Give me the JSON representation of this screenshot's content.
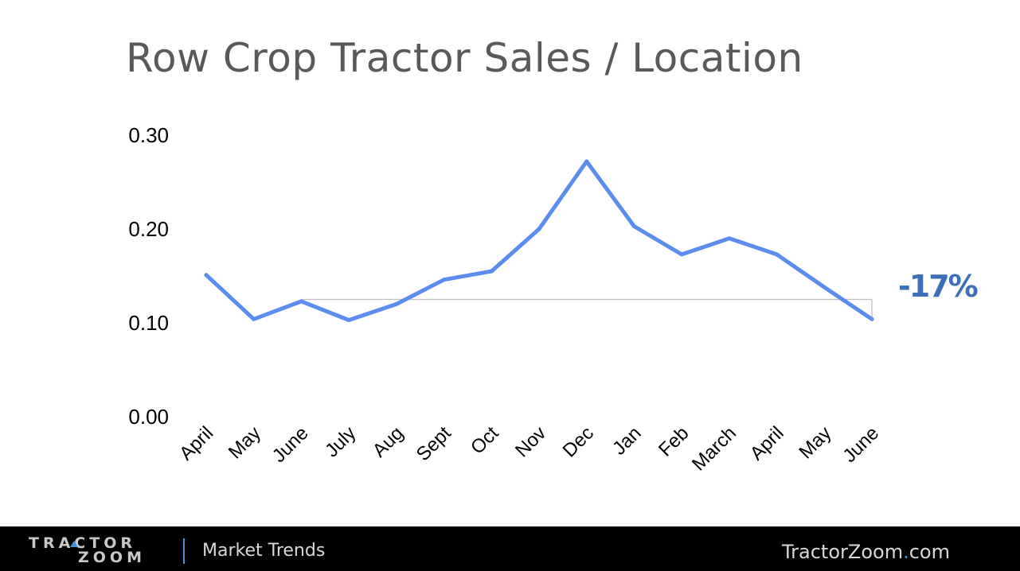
{
  "colors": {
    "line": "#5b8def",
    "accent": "#3d6fb8",
    "reference_line": "#bfbfbf",
    "footer_bg": "#000000"
  },
  "chart_data": {
    "type": "line",
    "title": "Row Crop Tractor Sales / Location",
    "categories": [
      "April",
      "May",
      "June",
      "July",
      "Aug",
      "Sept",
      "Oct",
      "Nov",
      "Dec",
      "Jan",
      "Feb",
      "March",
      "April",
      "May",
      "June"
    ],
    "series": [
      {
        "values": [
          0.151,
          0.104,
          0.123,
          0.103,
          0.12,
          0.146,
          0.155,
          0.2,
          0.272,
          0.203,
          0.173,
          0.19,
          0.173,
          0.138,
          0.104
        ]
      }
    ],
    "ylim": [
      0,
      0.3
    ],
    "yticks": [
      "0.30",
      "0.20",
      "0.10",
      "0.00"
    ],
    "ytick_values": [
      0.3,
      0.2,
      0.1,
      0.0
    ],
    "grid": false,
    "reference_value": 0.125,
    "annotation": "-17%"
  },
  "footer": {
    "logo_line1": "TRACTOR",
    "logo_line2": "ZOOM",
    "section": "Market Trends",
    "site_name": "TractorZoom",
    "site_dot": ".",
    "site_tld": "com"
  }
}
